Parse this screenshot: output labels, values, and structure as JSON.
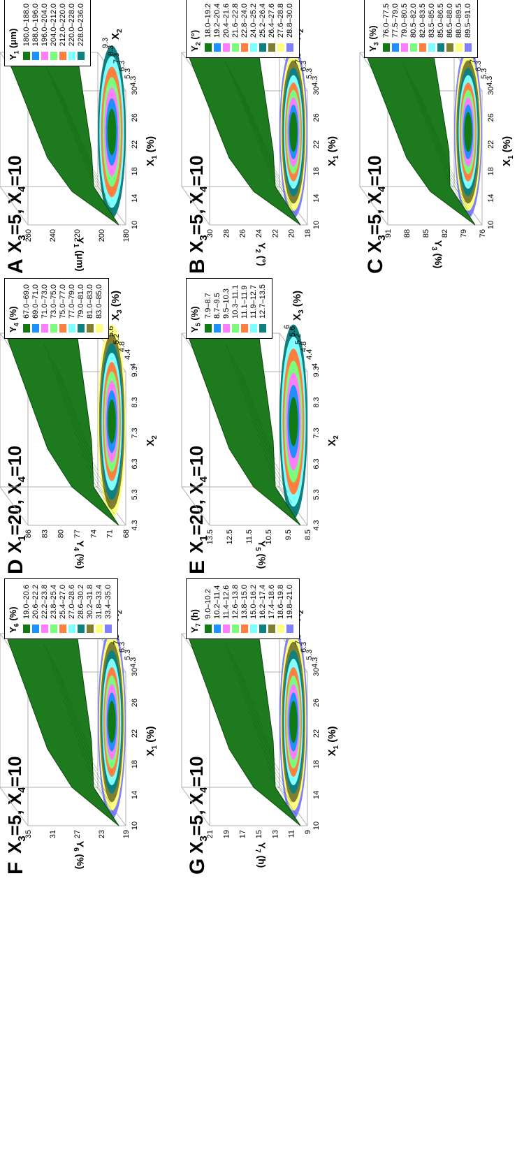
{
  "panels": [
    {
      "letter": "A",
      "title_a": "X",
      "title_a_sub": "3",
      "title_b": "=5, X",
      "title_b_sub": "4",
      "title_c": "=10",
      "xlabel": "X",
      "xlabel_sub": "1",
      "xlabel_unit": " (%)",
      "ylabel": "X",
      "ylabel_sub": "2",
      "zlabel": "Y",
      "zlabel_sub": "1",
      "zlabel_unit": " (μm)",
      "x_ticks": [
        "10",
        "14",
        "18",
        "22",
        "26",
        "30"
      ],
      "y_ticks": [
        "4.3",
        "5.3",
        "6.3",
        "7.3",
        "8.3",
        "9.3"
      ],
      "z_ticks": [
        "180",
        "200",
        "220",
        "240",
        "260"
      ],
      "legend_title": "Y",
      "legend_sub": "1",
      "legend_unit": " (μm)",
      "legend": [
        "180.0–188.0",
        "188.0–196.0",
        "196.0–204.0",
        "204.0–212.0",
        "212.0–220.0",
        "220.0–228.0",
        "228.0–236.0"
      ],
      "colors": [
        "#127a12",
        "#1e90ff",
        "#ff7eff",
        "#7cfc7c",
        "#ff7f3f",
        "#7fffff",
        "#0f7f7f"
      ]
    },
    {
      "letter": "B",
      "title_a": "X",
      "title_a_sub": "3",
      "title_b": "=5, X",
      "title_b_sub": "4",
      "title_c": "=10",
      "xlabel": "X",
      "xlabel_sub": "1",
      "xlabel_unit": " (%)",
      "ylabel": "X",
      "ylabel_sub": "2",
      "zlabel": "Y",
      "zlabel_sub": "2",
      "zlabel_unit": " (°)",
      "x_ticks": [
        "10",
        "14",
        "18",
        "22",
        "26",
        "30"
      ],
      "y_ticks": [
        "4.3",
        "5.3",
        "6.3",
        "7.3",
        "8.3",
        "9.3"
      ],
      "z_ticks": [
        "18",
        "20",
        "22",
        "24",
        "26",
        "28",
        "30"
      ],
      "legend_title": "Y",
      "legend_sub": "2",
      "legend_unit": " (°)",
      "legend": [
        "18.0–19.2",
        "19.2–20.4",
        "20.4–21.6",
        "21.6–22.8",
        "22.8–24.0",
        "24.0–25.2",
        "25.2–26.4",
        "26.4–27.6",
        "27.6–28.8",
        "28.8–30.0"
      ],
      "colors": [
        "#127a12",
        "#1e90ff",
        "#ff7eff",
        "#7cfc7c",
        "#ff7f3f",
        "#7fffff",
        "#0f7f7f",
        "#7f7f2f",
        "#ffff7f",
        "#7f7fff"
      ]
    },
    {
      "letter": "C",
      "title_a": "X",
      "title_a_sub": "3",
      "title_b": "=5, X",
      "title_b_sub": "4",
      "title_c": "=10",
      "xlabel": "X",
      "xlabel_sub": "1",
      "xlabel_unit": " (%)",
      "ylabel": "X",
      "ylabel_sub": "2",
      "zlabel": "Y",
      "zlabel_sub": "3",
      "zlabel_unit": " (%)",
      "x_ticks": [
        "10",
        "14",
        "18",
        "22",
        "26",
        "30"
      ],
      "y_ticks": [
        "4.3",
        "5.3",
        "6.3",
        "7.3",
        "8.3",
        "9.3"
      ],
      "z_ticks": [
        "76",
        "79",
        "82",
        "85",
        "88",
        "91"
      ],
      "legend_title": "Y",
      "legend_sub": "3",
      "legend_unit": " (%)",
      "legend": [
        "76.0–77.5",
        "77.5–79.0",
        "79.0–80.5",
        "80.5–82.0",
        "82.0–83.5",
        "83.5–85.0",
        "85.0–86.5",
        "86.5–88.0",
        "88.0–89.5",
        "89.5–91.0"
      ],
      "colors": [
        "#127a12",
        "#1e90ff",
        "#ff7eff",
        "#7cfc7c",
        "#ff7f3f",
        "#7fffff",
        "#0f7f7f",
        "#7f7f2f",
        "#ffff7f",
        "#7f7fff"
      ]
    },
    {
      "letter": "D",
      "title_a": "X",
      "title_a_sub": "1",
      "title_b": "=20, X",
      "title_b_sub": "4",
      "title_c": "=10",
      "xlabel": "X",
      "xlabel_sub": "2",
      "xlabel_unit": "",
      "ylabel": "X",
      "ylabel_sub": "3",
      "ylabel_unit": " (%)",
      "zlabel": "Y",
      "zlabel_sub": "4",
      "zlabel_unit": " (%)",
      "x_ticks": [
        "4.3",
        "5.3",
        "6.3",
        "7.3",
        "8.3",
        "9.3"
      ],
      "y_ticks": [
        "4",
        "4.4",
        "4.8",
        "5.2",
        "5.6",
        "6"
      ],
      "z_ticks": [
        "68",
        "71",
        "74",
        "77",
        "80",
        "83",
        "86"
      ],
      "legend_title": "Y",
      "legend_sub": "4",
      "legend_unit": " (%)",
      "legend": [
        "67.0–69.0",
        "69.0–71.0",
        "71.0–73.0",
        "73.0–75.0",
        "75.0–77.0",
        "77.0–79.0",
        "79.0–81.0",
        "81.0–83.0",
        "83.0–85.0"
      ],
      "colors": [
        "#127a12",
        "#1e90ff",
        "#ff7eff",
        "#7cfc7c",
        "#ff7f3f",
        "#7fffff",
        "#0f7f7f",
        "#7f7f2f",
        "#ffff7f"
      ]
    },
    {
      "letter": "E",
      "title_a": "X",
      "title_a_sub": "1",
      "title_b": "=20, X",
      "title_b_sub": "4",
      "title_c": "=10",
      "xlabel": "X",
      "xlabel_sub": "2",
      "xlabel_unit": "",
      "ylabel": "X",
      "ylabel_sub": "3",
      "ylabel_unit": " (%)",
      "zlabel": "Y",
      "zlabel_sub": "5",
      "zlabel_unit": " (%)",
      "x_ticks": [
        "4.3",
        "5.3",
        "6.3",
        "7.3",
        "8.3",
        "9.3"
      ],
      "y_ticks": [
        "4",
        "4.4",
        "4.8",
        "5.2",
        "5.6",
        "6"
      ],
      "z_ticks": [
        "8.5",
        "9.5",
        "10.5",
        "11.5",
        "12.5",
        "13.5"
      ],
      "legend_title": "Y",
      "legend_sub": "5",
      "legend_unit": " (%)",
      "legend": [
        "7.9–8.7",
        "8.7–9.5",
        "9.5–10.3",
        "10.3–11.1",
        "11.1–11.9",
        "11.9–12.7",
        "12.7–13.5"
      ],
      "colors": [
        "#127a12",
        "#1e90ff",
        "#ff7eff",
        "#7cfc7c",
        "#ff7f3f",
        "#7fffff",
        "#0f7f7f"
      ]
    },
    {
      "letter": "F",
      "title_a": "X",
      "title_a_sub": "3",
      "title_b": "=5, X",
      "title_b_sub": "4",
      "title_c": "=10",
      "xlabel": "X",
      "xlabel_sub": "1",
      "xlabel_unit": " (%)",
      "ylabel": "X",
      "ylabel_sub": "2",
      "zlabel": "Y",
      "zlabel_sub": "6",
      "zlabel_unit": " (%)",
      "x_ticks": [
        "10",
        "14",
        "18",
        "22",
        "26",
        "30"
      ],
      "y_ticks": [
        "4.3",
        "5.3",
        "6.3",
        "7.3",
        "8.3",
        "9.3"
      ],
      "z_ticks": [
        "19",
        "23",
        "27",
        "31",
        "35"
      ],
      "legend_title": "Y",
      "legend_sub": "6",
      "legend_unit": " (%)",
      "legend": [
        "19.0–20.6",
        "20.6–22.2",
        "22.2–23.8",
        "23.8–25.4",
        "25.4–27.0",
        "27.0–28.6",
        "28.6–30.2",
        "30.2–31.8",
        "31.8–33.4",
        "33.4–35.0"
      ],
      "colors": [
        "#127a12",
        "#1e90ff",
        "#ff7eff",
        "#7cfc7c",
        "#ff7f3f",
        "#7fffff",
        "#0f7f7f",
        "#7f7f2f",
        "#ffff7f",
        "#7f7fff"
      ]
    },
    {
      "letter": "G",
      "title_a": "X",
      "title_a_sub": "3",
      "title_b": "=5, X",
      "title_b_sub": "4",
      "title_c": "=10",
      "xlabel": "X",
      "xlabel_sub": "1",
      "xlabel_unit": " (%)",
      "ylabel": "X",
      "ylabel_sub": "2",
      "zlabel": "Y",
      "zlabel_sub": "7",
      "zlabel_unit": " (h)",
      "x_ticks": [
        "10",
        "14",
        "18",
        "22",
        "26",
        "30"
      ],
      "y_ticks": [
        "4.3",
        "5.3",
        "6.3",
        "7.3",
        "8.3",
        "9.3"
      ],
      "z_ticks": [
        "9",
        "11",
        "13",
        "15",
        "17",
        "19",
        "21"
      ],
      "legend_title": "Y",
      "legend_sub": "7",
      "legend_unit": " (h)",
      "legend": [
        "9.0–10.2",
        "10.2–11.4",
        "11.4–12.6",
        "12.6–13.8",
        "13.8–15.0",
        "15.0–16.2",
        "16.2–17.4",
        "17.4–18.6",
        "18.6–19.8",
        "19.8–21.0"
      ],
      "colors": [
        "#127a12",
        "#1e90ff",
        "#ff7eff",
        "#7cfc7c",
        "#ff7f3f",
        "#7fffff",
        "#0f7f7f",
        "#7f7f2f",
        "#ffff7f",
        "#7f7fff"
      ]
    }
  ],
  "chart_data": [
    {
      "type": "surface",
      "panel": "A",
      "x": "X1 (%)",
      "y": "X2",
      "z": "Y1 (μm)",
      "xlim": [
        10,
        30
      ],
      "ylim": [
        4.3,
        9.3
      ],
      "zlim": [
        180,
        260
      ]
    },
    {
      "type": "surface",
      "panel": "B",
      "x": "X1 (%)",
      "y": "X2",
      "z": "Y2 (°)",
      "xlim": [
        10,
        30
      ],
      "ylim": [
        4.3,
        9.3
      ],
      "zlim": [
        18,
        30
      ]
    },
    {
      "type": "surface",
      "panel": "C",
      "x": "X1 (%)",
      "y": "X2",
      "z": "Y3 (%)",
      "xlim": [
        10,
        30
      ],
      "ylim": [
        4.3,
        9.3
      ],
      "zlim": [
        76,
        91
      ]
    },
    {
      "type": "surface",
      "panel": "D",
      "x": "X2",
      "y": "X3 (%)",
      "z": "Y4 (%)",
      "xlim": [
        4.3,
        9.3
      ],
      "ylim": [
        4,
        6
      ],
      "zlim": [
        68,
        86
      ]
    },
    {
      "type": "surface",
      "panel": "E",
      "x": "X2",
      "y": "X3 (%)",
      "z": "Y5 (%)",
      "xlim": [
        4.3,
        9.3
      ],
      "ylim": [
        4,
        6
      ],
      "zlim": [
        8.5,
        13.5
      ]
    },
    {
      "type": "surface",
      "panel": "F",
      "x": "X1 (%)",
      "y": "X2",
      "z": "Y6 (%)",
      "xlim": [
        10,
        30
      ],
      "ylim": [
        4.3,
        9.3
      ],
      "zlim": [
        19,
        35
      ]
    },
    {
      "type": "surface",
      "panel": "G",
      "x": "X1 (%)",
      "y": "X2",
      "z": "Y7 (h)",
      "xlim": [
        10,
        30
      ],
      "ylim": [
        4.3,
        9.3
      ],
      "zlim": [
        9,
        21
      ]
    }
  ]
}
